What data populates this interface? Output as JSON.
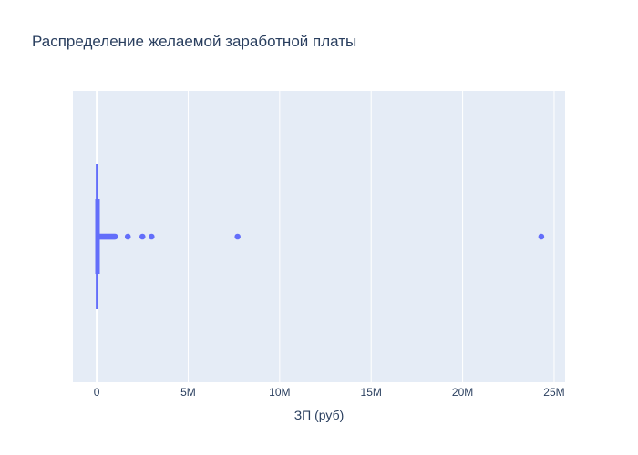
{
  "chart_data": {
    "type": "box",
    "orientation": "horizontal",
    "title": "Распределение желаемой заработной платы",
    "xlabel": "ЗП (руб)",
    "ylabel": "",
    "xlim": [
      -1300000,
      25600000
    ],
    "x_ticks": [
      {
        "value": 0,
        "label": "0"
      },
      {
        "value": 5000000,
        "label": "5M"
      },
      {
        "value": 10000000,
        "label": "10M"
      },
      {
        "value": 15000000,
        "label": "15M"
      },
      {
        "value": 20000000,
        "label": "20M"
      },
      {
        "value": 25000000,
        "label": "25M"
      }
    ],
    "grid": true,
    "legend": "none",
    "series": [
      {
        "min": 0,
        "q1": 20000,
        "median": 40000,
        "q3": 70000,
        "upper_fence": 1000000,
        "outliers": [
          150000,
          200000,
          250000,
          300000,
          350000,
          400000,
          450000,
          500000,
          550000,
          600000,
          650000,
          700000,
          750000,
          800000,
          850000,
          900000,
          950000,
          1000000,
          1700000,
          2500000,
          3000000,
          7700000,
          24300000
        ],
        "color": "#636efa"
      }
    ],
    "colors": {
      "plot_bg": "#e5ecf6",
      "grid": "#ffffff",
      "text": "#2a3f5f",
      "box": "#636efa"
    }
  }
}
